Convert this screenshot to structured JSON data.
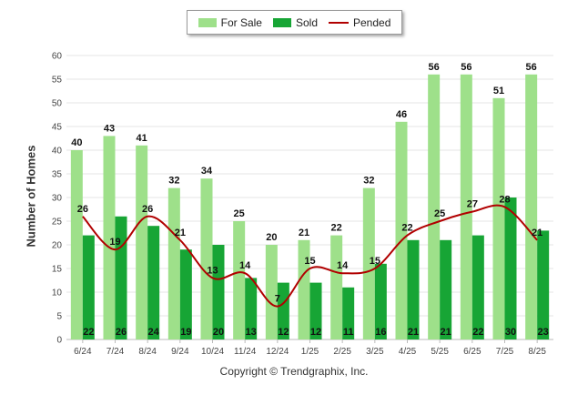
{
  "chart_data": {
    "type": "bar",
    "categories": [
      "6/24",
      "7/24",
      "8/24",
      "9/24",
      "10/24",
      "11/24",
      "12/24",
      "1/25",
      "2/25",
      "3/25",
      "4/25",
      "5/25",
      "6/25",
      "7/25",
      "8/25"
    ],
    "series": [
      {
        "name": "For Sale",
        "type": "bar",
        "color": "#9ee08a",
        "values": [
          40,
          43,
          41,
          32,
          34,
          25,
          20,
          21,
          22,
          32,
          46,
          56,
          56,
          51,
          56
        ]
      },
      {
        "name": "Sold",
        "type": "bar",
        "color": "#17a535",
        "values": [
          22,
          26,
          24,
          19,
          20,
          13,
          12,
          12,
          11,
          16,
          21,
          21,
          22,
          30,
          23
        ]
      },
      {
        "name": "Pended",
        "type": "line",
        "color": "#b10000",
        "values": [
          26,
          19,
          26,
          21,
          13,
          14,
          7,
          15,
          14,
          15,
          22,
          25,
          27,
          28,
          21
        ]
      }
    ],
    "ylabel": "Number of Homes",
    "xlabel": "",
    "ylim": [
      0,
      60
    ],
    "yticks": [
      0,
      5,
      10,
      15,
      20,
      25,
      30,
      35,
      40,
      45,
      50,
      55,
      60
    ],
    "grid": true,
    "legend_position": "top-center"
  },
  "legend": {
    "for_sale": "For Sale",
    "sold": "Sold",
    "pended": "Pended"
  },
  "footer": {
    "copyright": "Copyright © Trendgraphix, Inc."
  }
}
